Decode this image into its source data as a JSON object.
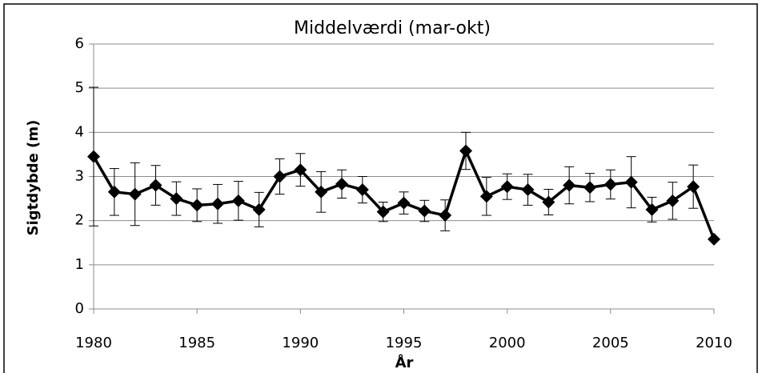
{
  "chart_data": {
    "type": "line",
    "title": "Middelværdi (mar-okt)",
    "x_label": "År",
    "y_label": "Sigtdybde (m)",
    "x": [
      1980,
      1981,
      1982,
      1983,
      1984,
      1985,
      1986,
      1987,
      1988,
      1989,
      1990,
      1991,
      1992,
      1993,
      1994,
      1995,
      1996,
      1997,
      1998,
      1999,
      2000,
      2001,
      2002,
      2003,
      2004,
      2005,
      2006,
      2007,
      2008,
      2009,
      2010
    ],
    "values": [
      3.45,
      2.65,
      2.6,
      2.8,
      2.5,
      2.35,
      2.38,
      2.45,
      2.25,
      3.0,
      3.15,
      2.65,
      2.83,
      2.7,
      2.2,
      2.4,
      2.22,
      2.12,
      3.58,
      2.55,
      2.77,
      2.7,
      2.42,
      2.8,
      2.75,
      2.82,
      2.87,
      2.25,
      2.45,
      2.77,
      1.58
    ],
    "errors": [
      1.57,
      0.53,
      0.71,
      0.45,
      0.38,
      0.37,
      0.44,
      0.44,
      0.39,
      0.4,
      0.37,
      0.46,
      0.32,
      0.3,
      0.22,
      0.25,
      0.24,
      0.35,
      0.42,
      0.43,
      0.29,
      0.35,
      0.29,
      0.42,
      0.32,
      0.33,
      0.58,
      0.28,
      0.42,
      0.49,
      null
    ],
    "color": "#000000",
    "xlim": [
      1980,
      2010
    ],
    "xticks": [
      1980,
      1985,
      1990,
      1995,
      2000,
      2005,
      2010
    ],
    "ylim": [
      0,
      6
    ],
    "yticks": [
      0,
      1,
      2,
      3,
      4,
      5,
      6
    ],
    "grid": true
  }
}
